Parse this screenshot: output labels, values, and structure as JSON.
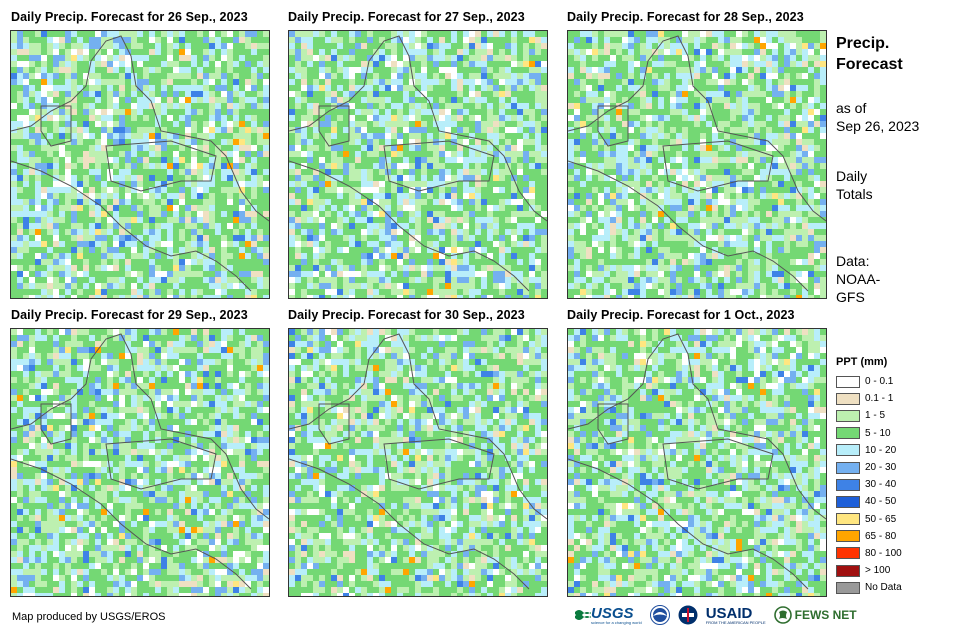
{
  "panels": [
    {
      "title": "Daily Precip. Forecast for 26 Sep., 2023"
    },
    {
      "title": "Daily Precip. Forecast for 27 Sep., 2023"
    },
    {
      "title": "Daily Precip. Forecast for 28 Sep., 2023"
    },
    {
      "title": "Daily Precip. Forecast for 29 Sep., 2023"
    },
    {
      "title": "Daily Precip. Forecast for 30 Sep., 2023"
    },
    {
      "title": "Daily Precip. Forecast for 1 Oct., 2023"
    }
  ],
  "side": {
    "title_line1": "Precip.",
    "title_line2": "Forecast",
    "asof_line1": "as of",
    "asof_line2": "Sep 26, 2023",
    "totals_line1": "Daily",
    "totals_line2": "Totals",
    "data_line1": "Data:",
    "data_line2": "NOAA-",
    "data_line3": "GFS"
  },
  "legend": {
    "title": "PPT (mm)",
    "classes": [
      {
        "label": "0 - 0.1",
        "color": "#ffffff"
      },
      {
        "label": "0.1 - 1",
        "color": "#efe0c2"
      },
      {
        "label": "1 - 5",
        "color": "#bdf0b0"
      },
      {
        "label": "5 - 10",
        "color": "#74d874"
      },
      {
        "label": "10 - 20",
        "color": "#b8eefa"
      },
      {
        "label": "20 - 30",
        "color": "#74b0f0"
      },
      {
        "label": "30 - 40",
        "color": "#3e82e6"
      },
      {
        "label": "40 - 50",
        "color": "#1e5fd8"
      },
      {
        "label": "50 - 65",
        "color": "#ffe680"
      },
      {
        "label": "65 - 80",
        "color": "#ffa500"
      },
      {
        "label": "80 - 100",
        "color": "#ff3300"
      },
      {
        "label": "> 100",
        "color": "#a01010"
      },
      {
        "label": "No Data",
        "color": "#999999"
      }
    ]
  },
  "credit": "Map produced by USGS/EROS",
  "logos": {
    "usgs": "USGS",
    "usgs_tagline": "science for a changing world",
    "usaid": "USAID",
    "usaid_tagline": "FROM THE AMERICAN PEOPLE",
    "fews": "FEWS NET"
  }
}
